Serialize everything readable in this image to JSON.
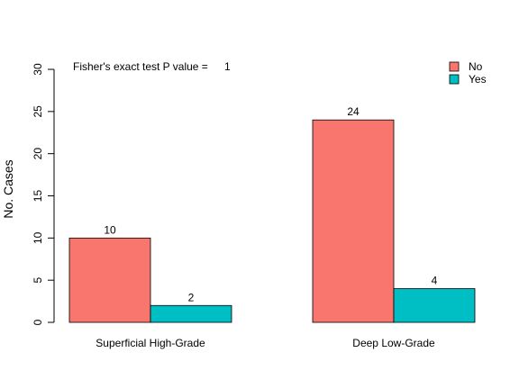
{
  "chart_data": {
    "type": "bar",
    "categories": [
      "Superficial High-Grade",
      "Deep Low-Grade"
    ],
    "series": [
      {
        "name": "No",
        "values": [
          10,
          24
        ],
        "color": "#F8766D"
      },
      {
        "name": "Yes",
        "values": [
          2,
          4
        ],
        "color": "#00BFC4"
      }
    ],
    "ylabel": "No. Cases",
    "xlabel": "",
    "ylim": [
      0,
      30
    ],
    "yticks": [
      0,
      5,
      10,
      15,
      20,
      25,
      30
    ],
    "annotation": {
      "label": "Fisher's exact test P value =",
      "value": "1"
    },
    "legend_position": "top-right",
    "grid": false
  }
}
